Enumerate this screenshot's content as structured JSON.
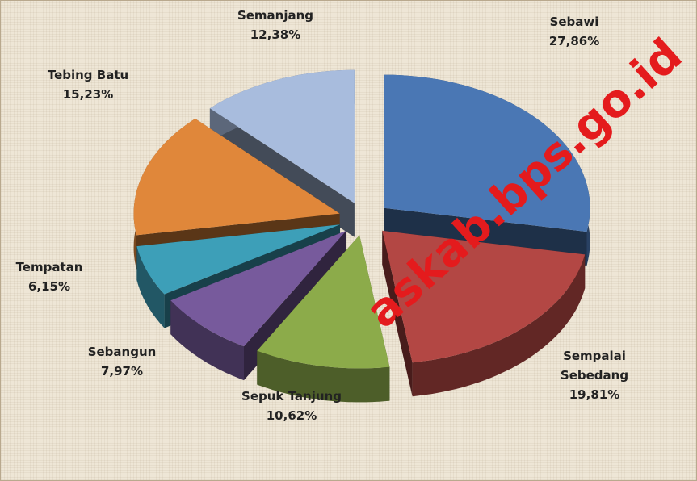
{
  "chart_data": {
    "type": "pie3d",
    "categories": [
      "Sebawi",
      "Sempalai Sebedang",
      "Sepuk Tanjung",
      "Sebangun",
      "Tempatan",
      "Tebing Batu",
      "Semanjang"
    ],
    "values": [
      27.86,
      19.81,
      10.62,
      7.97,
      6.15,
      15.23,
      12.38
    ],
    "value_labels": [
      "27,86%",
      "19,81%",
      "10,62%",
      "7,97%",
      "6,15%",
      "15,23%",
      "12,38%"
    ],
    "colors": [
      "#4a77b4",
      "#b34744",
      "#8cab4a",
      "#775a9c",
      "#3d9fb8",
      "#e0873a",
      "#a8bcdd"
    ]
  },
  "watermark": "askab.bps.go.id"
}
